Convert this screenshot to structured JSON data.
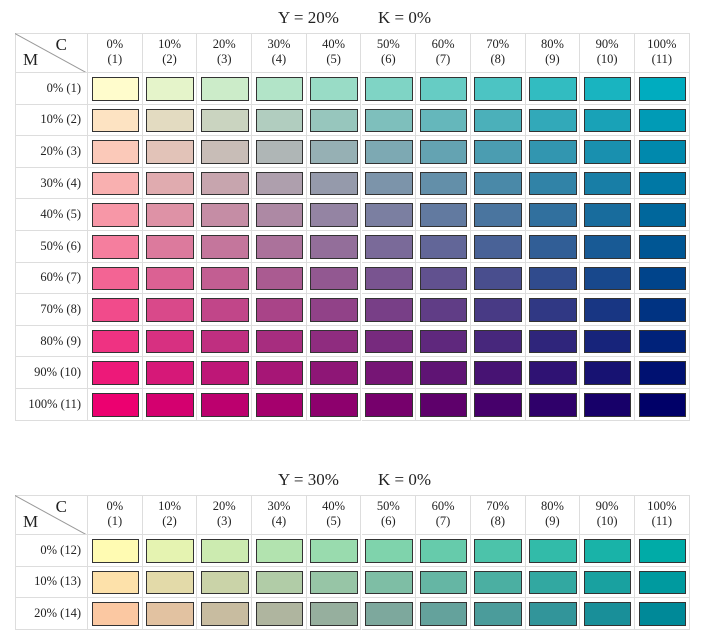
{
  "tables": [
    {
      "title": {
        "y": {
          "value": 20,
          "label": "Y = 20%"
        },
        "k": {
          "value": 0,
          "label": "K = 0%"
        }
      },
      "corner": {
        "c": "C",
        "m": "M"
      },
      "columns": [
        {
          "value": 0,
          "label": "0%",
          "number": "(1)"
        },
        {
          "value": 10,
          "label": "10%",
          "number": "(2)"
        },
        {
          "value": 20,
          "label": "20%",
          "number": "(3)"
        },
        {
          "value": 30,
          "label": "30%",
          "number": "(4)"
        },
        {
          "value": 40,
          "label": "40%",
          "number": "(5)"
        },
        {
          "value": 50,
          "label": "50%",
          "number": "(6)"
        },
        {
          "value": 60,
          "label": "60%",
          "number": "(7)"
        },
        {
          "value": 70,
          "label": "70%",
          "number": "(8)"
        },
        {
          "value": 80,
          "label": "80%",
          "number": "(9)"
        },
        {
          "value": 90,
          "label": "90%",
          "number": "(10)"
        },
        {
          "value": 100,
          "label": "100%",
          "number": "(11)"
        }
      ],
      "rows": [
        {
          "value": 0,
          "label": "0% (1)"
        },
        {
          "value": 10,
          "label": "10% (2)"
        },
        {
          "value": 20,
          "label": "20% (3)"
        },
        {
          "value": 30,
          "label": "30% (4)"
        },
        {
          "value": 40,
          "label": "40% (5)"
        },
        {
          "value": 50,
          "label": "50% (6)"
        },
        {
          "value": 60,
          "label": "60% (7)"
        },
        {
          "value": 70,
          "label": "70% (8)"
        },
        {
          "value": 80,
          "label": "80% (9)"
        },
        {
          "value": 90,
          "label": "90% (10)"
        },
        {
          "value": 100,
          "label": "100% (11)"
        }
      ]
    },
    {
      "title": {
        "y": {
          "value": 30,
          "label": "Y = 30%"
        },
        "k": {
          "value": 0,
          "label": "K = 0%"
        }
      },
      "corner": {
        "c": "C",
        "m": "M"
      },
      "columns": [
        {
          "value": 0,
          "label": "0%",
          "number": "(1)"
        },
        {
          "value": 10,
          "label": "10%",
          "number": "(2)"
        },
        {
          "value": 20,
          "label": "20%",
          "number": "(3)"
        },
        {
          "value": 30,
          "label": "30%",
          "number": "(4)"
        },
        {
          "value": 40,
          "label": "40%",
          "number": "(5)"
        },
        {
          "value": 50,
          "label": "50%",
          "number": "(6)"
        },
        {
          "value": 60,
          "label": "60%",
          "number": "(7)"
        },
        {
          "value": 70,
          "label": "70%",
          "number": "(8)"
        },
        {
          "value": 80,
          "label": "80%",
          "number": "(9)"
        },
        {
          "value": 90,
          "label": "90%",
          "number": "(10)"
        },
        {
          "value": 100,
          "label": "100%",
          "number": "(11)"
        }
      ],
      "rows": [
        {
          "value": 0,
          "label": "0% (12)"
        },
        {
          "value": 10,
          "label": "10% (13)"
        },
        {
          "value": 20,
          "label": "20% (14)"
        }
      ]
    }
  ]
}
